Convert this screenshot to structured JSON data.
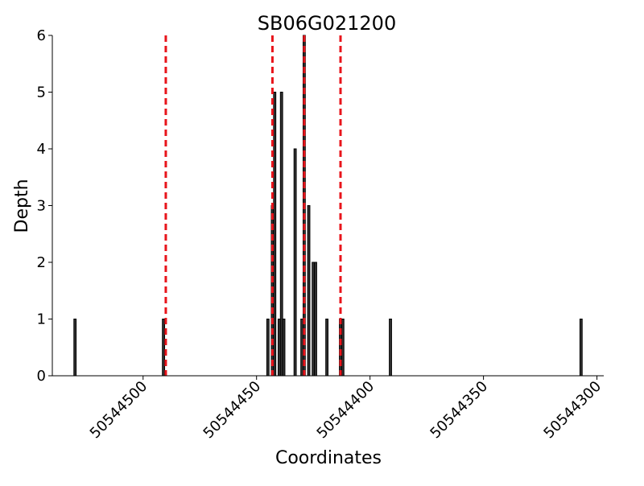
{
  "chart_data": {
    "type": "bar",
    "title": "SB06G021200",
    "x_label": "Coordinates",
    "y_label": "Depth",
    "x": [
      50544530,
      50544491,
      50544445,
      50544443,
      50544442,
      50544440,
      50544439,
      50544438,
      50544433,
      50544430,
      50544429,
      50544427,
      50544425,
      50544424,
      50544419,
      50544413,
      50544412,
      50544391,
      50544307
    ],
    "values": [
      1,
      1,
      1,
      3,
      5,
      1,
      5,
      1,
      4,
      1,
      6,
      3,
      2,
      2,
      1,
      1,
      1,
      1,
      1
    ],
    "color": "#333333",
    "vlines": [
      50544490,
      50544443,
      50544429,
      50544413
    ],
    "vline_color": "#e8141b",
    "xlim": [
      50544540,
      50544297
    ],
    "xticks": [
      50544500,
      50544450,
      50544400,
      50544350,
      50544300
    ],
    "ylim": [
      0,
      6
    ],
    "yticks": [
      0,
      1,
      2,
      3,
      4,
      5,
      6
    ]
  }
}
